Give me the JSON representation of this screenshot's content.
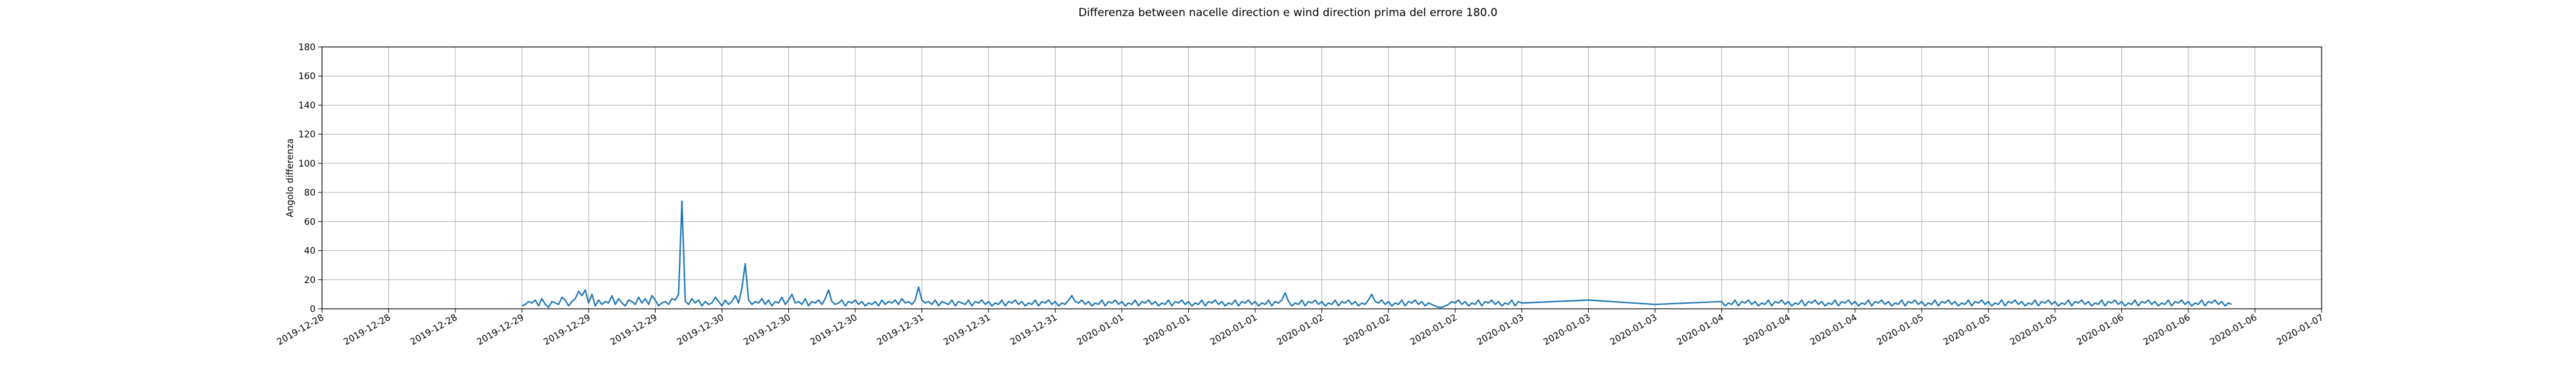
{
  "chart_data": {
    "type": "line",
    "title": "Differenza between nacelle direction e wind direction prima del errore 180.0",
    "xlabel": "",
    "ylabel": "Angolo differenza",
    "ylim": [
      0,
      180
    ],
    "yticks": [
      0,
      20,
      40,
      60,
      80,
      100,
      120,
      140,
      160,
      180
    ],
    "xticks": [
      "2019-12-28",
      "2019-12-28",
      "2019-12-28",
      "2019-12-29",
      "2019-12-29",
      "2019-12-29",
      "2019-12-30",
      "2019-12-30",
      "2019-12-30",
      "2019-12-31",
      "2019-12-31",
      "2019-12-31",
      "2020-01-01",
      "2020-01-01",
      "2020-01-01",
      "2020-01-02",
      "2020-01-02",
      "2020-01-02",
      "2020-01-03",
      "2020-01-03",
      "2020-01-03",
      "2020-01-04",
      "2020-01-04",
      "2020-01-04",
      "2020-01-05",
      "2020-01-05",
      "2020-01-05",
      "2020-01-06",
      "2020-01-06",
      "2020-01-06",
      "2020-01-07"
    ],
    "grid": true,
    "color": "#1f77b4",
    "series": [
      {
        "x_tick_index": [
          3.0,
          3.05,
          3.1,
          3.15,
          3.2,
          3.25,
          3.3,
          3.35,
          3.4,
          3.45,
          3.5,
          3.55,
          3.6,
          3.65,
          3.7,
          3.75,
          3.8,
          3.85,
          3.9,
          3.95,
          4.0,
          4.05,
          4.1,
          4.15,
          4.2,
          4.25,
          4.3,
          4.35,
          4.4,
          4.45,
          4.5,
          4.55,
          4.6,
          4.65,
          4.7,
          4.75,
          4.8,
          4.85,
          4.9,
          4.95,
          5.0,
          5.05,
          5.1,
          5.15,
          5.2,
          5.25,
          5.3,
          5.35,
          5.4,
          5.45,
          5.5,
          5.55,
          5.6,
          5.65,
          5.7,
          5.75,
          5.8,
          5.85,
          5.9,
          5.95,
          6.0,
          6.05,
          6.1,
          6.15,
          6.2,
          6.25,
          6.3,
          6.35,
          6.4,
          6.45,
          6.5,
          6.55,
          6.6,
          6.65,
          6.7,
          6.75,
          6.8,
          6.85,
          6.9,
          6.95,
          7.0,
          7.05,
          7.1,
          7.15,
          7.2,
          7.25,
          7.3,
          7.35,
          7.4,
          7.45,
          7.5,
          7.55,
          7.6,
          7.65,
          7.7,
          7.75,
          7.8,
          7.85,
          7.9,
          7.95,
          8.0,
          8.05,
          8.1,
          8.15,
          8.2,
          8.25,
          8.3,
          8.35,
          8.4,
          8.45,
          8.5,
          8.55,
          8.6,
          8.65,
          8.7,
          8.75,
          8.8,
          8.85,
          8.9,
          8.95,
          9.0,
          9.05,
          9.1,
          9.15,
          9.2,
          9.25,
          9.3,
          9.35,
          9.4,
          9.45,
          9.5,
          9.55,
          9.6,
          9.65,
          9.7,
          9.75,
          9.8,
          9.85,
          9.9,
          9.95,
          10.0,
          10.05,
          10.1,
          10.15,
          10.2,
          10.25,
          10.3,
          10.35,
          10.4,
          10.45,
          10.5,
          10.55,
          10.6,
          10.65,
          10.7,
          10.75,
          10.8,
          10.85,
          10.9,
          10.95,
          11.0,
          11.05,
          11.1,
          11.15,
          11.2,
          11.25,
          11.3,
          11.35,
          11.4,
          11.45,
          11.5,
          11.55,
          11.6,
          11.65,
          11.7,
          11.75,
          11.8,
          11.85,
          11.9,
          11.95,
          12.0,
          12.05,
          12.1,
          12.15,
          12.2,
          12.25,
          12.3,
          12.35,
          12.4,
          12.45,
          12.5,
          12.55,
          12.6,
          12.65,
          12.7,
          12.75,
          12.8,
          12.85,
          12.9,
          12.95,
          13.0,
          13.05,
          13.1,
          13.15,
          13.2,
          13.25,
          13.3,
          13.35,
          13.4,
          13.45,
          13.5,
          13.55,
          13.6,
          13.65,
          13.7,
          13.75,
          13.8,
          13.85,
          13.9,
          13.95,
          14.0,
          14.05,
          14.1,
          14.15,
          14.2,
          14.25,
          14.3,
          14.35,
          14.4,
          14.45,
          14.5,
          14.55,
          14.6,
          14.65,
          14.7,
          14.75,
          14.8,
          14.85,
          14.9,
          14.95,
          15.0,
          15.05,
          15.1,
          15.15,
          15.2,
          15.25,
          15.3,
          15.35,
          15.4,
          15.45,
          15.5,
          15.55,
          15.6,
          15.65,
          15.7,
          15.75,
          15.8,
          15.85,
          15.9,
          15.95,
          16.0,
          16.05,
          16.1,
          16.15,
          16.2,
          16.25,
          16.3,
          16.35,
          16.4,
          16.45,
          16.5,
          16.55,
          16.6,
          16.65,
          16.7,
          16.75,
          16.8,
          16.85,
          16.9,
          16.95,
          17.0,
          17.05,
          17.1,
          17.15,
          17.2,
          17.25,
          17.3,
          17.35,
          17.4,
          17.45,
          17.5,
          17.55,
          17.6,
          17.65,
          17.7,
          17.75,
          17.8,
          17.85,
          17.9,
          17.95,
          18.0,
          19.0,
          20.0,
          21.0,
          21.05,
          21.1,
          21.15,
          21.2,
          21.25,
          21.3,
          21.35,
          21.4,
          21.45,
          21.5,
          21.55,
          21.6,
          21.65,
          21.7,
          21.75,
          21.8,
          21.85,
          21.9,
          21.95,
          22.0,
          22.05,
          22.1,
          22.15,
          22.2,
          22.25,
          22.3,
          22.35,
          22.4,
          22.45,
          22.5,
          22.55,
          22.6,
          22.65,
          22.7,
          22.75,
          22.8,
          22.85,
          22.9,
          22.95,
          23.0,
          23.05,
          23.1,
          23.15,
          23.2,
          23.25,
          23.3,
          23.35,
          23.4,
          23.45,
          23.5,
          23.55,
          23.6,
          23.65,
          23.7,
          23.75,
          23.8,
          23.85,
          23.9,
          23.95,
          24.0,
          24.05,
          24.1,
          24.15,
          24.2,
          24.25,
          24.3,
          24.35,
          24.4,
          24.45,
          24.5,
          24.55,
          24.6,
          24.65,
          24.7,
          24.75,
          24.8,
          24.85,
          24.9,
          24.95,
          25.0,
          25.05,
          25.1,
          25.15,
          25.2,
          25.25,
          25.3,
          25.35,
          25.4,
          25.45,
          25.5,
          25.55,
          25.6,
          25.65,
          25.7,
          25.75,
          25.8,
          25.85,
          25.9,
          25.95,
          26.0,
          26.05,
          26.1,
          26.15,
          26.2,
          26.25,
          26.3,
          26.35,
          26.4,
          26.45,
          26.5,
          26.55,
          26.6,
          26.65,
          26.7,
          26.75,
          26.8,
          26.85,
          26.9,
          26.95,
          27.0,
          27.05,
          27.1,
          27.15,
          27.2,
          27.25,
          27.3,
          27.35,
          27.4,
          27.45,
          27.5,
          27.55,
          27.6,
          27.65,
          27.7,
          27.75,
          27.8,
          27.85,
          27.9,
          27.95,
          28.0,
          28.05,
          28.1,
          28.15,
          28.2,
          28.25,
          28.3,
          28.35,
          28.4,
          28.45,
          28.5,
          28.55,
          28.6,
          28.65,
          28.7,
          28.75,
          28.8,
          28.85,
          28.9,
          28.95,
          29.0,
          29.05,
          29.1,
          29.15,
          29.2,
          29.25,
          29.3,
          29.35,
          29.4,
          29.45,
          29.5,
          29.55,
          29.6,
          29.65,
          29.7,
          29.75,
          29.8,
          29.85,
          29.9,
          29.95,
          30.0
        ],
        "values": [
          2,
          3,
          5,
          4,
          6,
          2,
          7,
          3,
          1,
          5,
          4,
          3,
          8,
          6,
          2,
          5,
          7,
          12,
          9,
          13,
          4,
          10,
          2,
          6,
          3,
          5,
          4,
          9,
          3,
          7,
          4,
          2,
          6,
          5,
          3,
          8,
          4,
          7,
          3,
          9,
          6,
          2,
          4,
          5,
          3,
          7,
          6,
          10,
          74,
          5,
          3,
          7,
          4,
          6,
          2,
          5,
          3,
          4,
          8,
          5,
          2,
          6,
          3,
          5,
          9,
          4,
          14,
          31,
          6,
          3,
          5,
          4,
          7,
          3,
          6,
          2,
          5,
          4,
          8,
          3,
          6,
          10,
          4,
          5,
          3,
          7,
          2,
          5,
          4,
          6,
          3,
          7,
          13,
          5,
          3,
          4,
          6,
          2,
          5,
          4,
          6,
          3,
          5,
          2,
          4,
          3,
          5,
          2,
          6,
          3,
          5,
          4,
          6,
          3,
          7,
          4,
          5,
          3,
          6,
          15,
          6,
          4,
          5,
          3,
          6,
          2,
          5,
          4,
          3,
          6,
          2,
          5,
          4,
          3,
          6,
          2,
          5,
          4,
          6,
          3,
          5,
          2,
          4,
          3,
          6,
          2,
          5,
          4,
          6,
          3,
          5,
          2,
          4,
          3,
          6,
          2,
          5,
          4,
          6,
          3,
          5,
          2,
          4,
          3,
          6,
          9,
          5,
          4,
          6,
          3,
          5,
          2,
          4,
          3,
          6,
          2,
          5,
          4,
          6,
          3,
          5,
          2,
          4,
          3,
          6,
          2,
          5,
          4,
          6,
          3,
          5,
          2,
          4,
          3,
          6,
          2,
          5,
          4,
          6,
          3,
          5,
          2,
          4,
          3,
          6,
          2,
          5,
          4,
          6,
          3,
          5,
          2,
          4,
          3,
          6,
          2,
          5,
          4,
          6,
          3,
          5,
          2,
          4,
          3,
          6,
          2,
          5,
          4,
          6,
          11,
          5,
          2,
          4,
          3,
          6,
          2,
          5,
          4,
          6,
          3,
          5,
          2,
          4,
          3,
          6,
          2,
          5,
          4,
          6,
          3,
          5,
          2,
          4,
          3,
          6,
          10,
          5,
          4,
          6,
          3,
          5,
          2,
          4,
          3,
          6,
          2,
          5,
          4,
          6,
          3,
          5,
          2,
          4,
          3,
          2,
          1,
          1,
          2,
          3,
          5,
          4,
          6,
          3,
          5,
          2,
          4,
          3,
          6,
          2,
          5,
          4,
          6,
          3,
          5,
          2,
          4,
          3,
          6,
          2,
          5,
          4,
          6,
          3,
          5,
          2,
          4,
          3,
          6,
          2,
          5,
          4,
          6,
          3,
          5,
          2,
          4,
          3,
          6,
          2,
          5,
          4,
          6,
          3,
          5,
          2,
          4,
          3,
          6,
          2,
          5,
          4,
          6,
          3,
          5,
          2,
          4,
          3,
          6,
          2,
          5,
          4,
          6,
          3,
          5,
          2,
          4,
          3,
          6,
          2,
          5,
          4,
          6,
          3,
          5,
          2,
          4,
          3,
          6,
          2,
          5,
          4,
          6,
          3,
          5,
          2,
          4,
          3,
          6,
          2,
          5,
          4,
          6,
          3,
          5,
          2,
          4,
          3,
          6,
          2,
          5,
          4,
          6,
          3,
          5,
          2,
          4,
          3,
          6,
          2,
          5,
          4,
          6,
          3,
          5,
          2,
          4,
          3,
          6,
          2,
          5,
          4,
          6,
          3,
          5,
          2,
          4,
          3,
          6,
          2,
          5,
          4,
          6,
          3,
          5,
          2,
          4,
          3,
          6,
          2,
          5,
          4,
          6,
          3,
          5,
          2,
          4,
          3,
          6,
          2,
          5,
          4,
          6,
          3,
          5,
          2,
          4,
          3,
          6,
          2,
          5,
          4,
          6,
          3,
          5,
          2,
          4,
          3,
          6,
          2,
          5,
          4,
          6,
          3,
          5,
          2,
          4,
          3
        ]
      }
    ]
  }
}
